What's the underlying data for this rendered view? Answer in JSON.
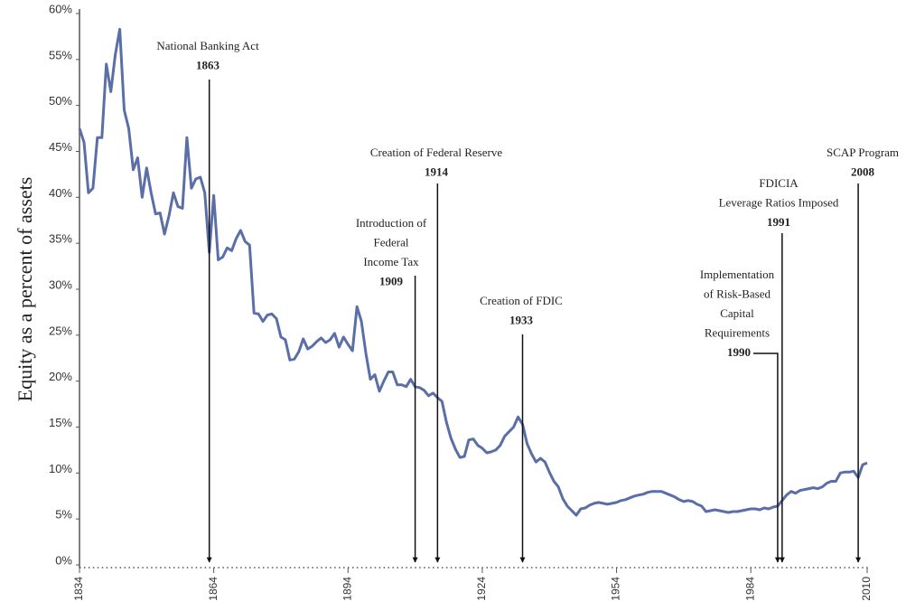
{
  "chart_data": {
    "type": "line",
    "y_label": "Equity as a percent of assets",
    "color": "#5a6ea8",
    "xlim": [
      1834,
      2010
    ],
    "xticks": [
      1834,
      1864,
      1894,
      1924,
      1954,
      1984,
      2010
    ],
    "ylim": [
      0,
      60
    ],
    "yticks": [
      {
        "value": 0,
        "label": "0%"
      },
      {
        "value": 5,
        "label": "5%"
      },
      {
        "value": 10,
        "label": "10%"
      },
      {
        "value": 15,
        "label": "15%"
      },
      {
        "value": 20,
        "label": "20%"
      },
      {
        "value": 25,
        "label": "25%"
      },
      {
        "value": 30,
        "label": "30%"
      },
      {
        "value": 35,
        "label": "35%"
      },
      {
        "value": 40,
        "label": "40%"
      },
      {
        "value": 45,
        "label": "45%"
      },
      {
        "value": 50,
        "label": "50%"
      },
      {
        "value": 55,
        "label": "55%"
      },
      {
        "value": 60,
        "label": "60%"
      }
    ],
    "x": [
      1834,
      1835,
      1836,
      1837,
      1838,
      1839,
      1840,
      1841,
      1842,
      1843,
      1844,
      1845,
      1846,
      1847,
      1848,
      1849,
      1850,
      1851,
      1852,
      1853,
      1854,
      1855,
      1856,
      1857,
      1858,
      1859,
      1860,
      1861,
      1862,
      1863,
      1864,
      1865,
      1866,
      1867,
      1868,
      1869,
      1870,
      1871,
      1872,
      1873,
      1874,
      1875,
      1876,
      1877,
      1878,
      1879,
      1880,
      1881,
      1882,
      1883,
      1884,
      1885,
      1886,
      1887,
      1888,
      1889,
      1890,
      1891,
      1892,
      1893,
      1894,
      1895,
      1896,
      1897,
      1898,
      1899,
      1900,
      1901,
      1902,
      1903,
      1904,
      1905,
      1906,
      1907,
      1908,
      1909,
      1910,
      1911,
      1912,
      1913,
      1914,
      1915,
      1916,
      1917,
      1918,
      1919,
      1920,
      1921,
      1922,
      1923,
      1924,
      1925,
      1926,
      1927,
      1928,
      1929,
      1930,
      1931,
      1932,
      1933,
      1934,
      1935,
      1936,
      1937,
      1938,
      1939,
      1940,
      1941,
      1942,
      1943,
      1944,
      1945,
      1946,
      1947,
      1948,
      1949,
      1950,
      1951,
      1952,
      1953,
      1954,
      1955,
      1956,
      1957,
      1958,
      1959,
      1960,
      1961,
      1962,
      1963,
      1964,
      1965,
      1966,
      1967,
      1968,
      1969,
      1970,
      1971,
      1972,
      1973,
      1974,
      1975,
      1976,
      1977,
      1978,
      1979,
      1980,
      1981,
      1982,
      1983,
      1984,
      1985,
      1986,
      1987,
      1988,
      1989,
      1990,
      1991,
      1992,
      1993,
      1994,
      1995,
      1996,
      1997,
      1998,
      1999,
      2000,
      2001,
      2002,
      2003,
      2004,
      2005,
      2006,
      2007,
      2008,
      2009,
      2010
    ],
    "values": [
      47.5,
      46,
      40.5,
      41,
      46.5,
      46.5,
      54.5,
      51.5,
      55.5,
      58.3,
      49.5,
      47.5,
      43,
      44.3,
      40,
      43.2,
      40.5,
      38.2,
      38.3,
      36,
      38,
      40.5,
      39,
      38.8,
      46.5,
      41,
      42,
      42.2,
      40.5,
      34,
      40.2,
      33.2,
      33.5,
      34.5,
      34.2,
      35.5,
      36.4,
      35.2,
      34.8,
      27.4,
      27.3,
      26.5,
      27.2,
      27.3,
      26.8,
      24.8,
      24.5,
      22.3,
      22.4,
      23.2,
      24.6,
      23.5,
      23.8,
      24.3,
      24.7,
      24.2,
      24.5,
      25.2,
      23.7,
      24.8,
      24,
      23.3,
      28.1,
      26.5,
      23,
      20.2,
      20.7,
      18.9,
      20,
      21,
      21,
      19.6,
      19.6,
      19.4,
      20.2,
      19.4,
      19.3,
      19,
      18.4,
      18.7,
      18.2,
      17.8,
      15.5,
      13.8,
      12.6,
      11.7,
      11.8,
      13.6,
      13.7,
      13,
      12.7,
      12.2,
      12.3,
      12.5,
      13,
      14,
      14.5,
      15,
      16.1,
      15.3,
      13.2,
      12.1,
      11.2,
      11.6,
      11.2,
      10.1,
      9.1,
      8.5,
      7.2,
      6.4,
      5.9,
      5.4,
      6.1,
      6.2,
      6.5,
      6.7,
      6.8,
      6.7,
      6.6,
      6.7,
      6.8,
      7,
      7.1,
      7.3,
      7.5,
      7.6,
      7.7,
      7.9,
      8,
      8,
      8,
      7.8,
      7.6,
      7.4,
      7.1,
      6.9,
      7,
      6.9,
      6.6,
      6.4,
      5.8,
      5.9,
      6,
      5.9,
      5.8,
      5.7,
      5.8,
      5.8,
      5.9,
      6,
      6.1,
      6.1,
      6,
      6.2,
      6.1,
      6.3,
      6.4,
      7,
      7.6,
      8,
      7.8,
      8.1,
      8.2,
      8.3,
      8.4,
      8.3,
      8.5,
      8.9,
      9.1,
      9.1,
      10,
      10.1,
      10.1,
      10.2,
      9.5,
      10.9,
      11.1
    ],
    "annotations": [
      {
        "lines": [
          "National Banking Act"
        ],
        "x": 1863
      },
      {
        "lines": [
          "Introduction of",
          "Federal",
          "Income Tax"
        ],
        "x": 1909
      },
      {
        "lines": [
          "Creation of Federal Reserve"
        ],
        "x": 1914
      },
      {
        "lines": [
          "Creation of FDIC"
        ],
        "x": 1933
      },
      {
        "lines": [
          "Implementation",
          "of Risk-Based",
          "Capital",
          "Requirements"
        ],
        "x": 1990
      },
      {
        "lines": [
          "FDICIA",
          "Leverage Ratios Imposed"
        ],
        "x": 1991
      },
      {
        "lines": [
          "SCAP Program"
        ],
        "x": 2008
      }
    ]
  }
}
